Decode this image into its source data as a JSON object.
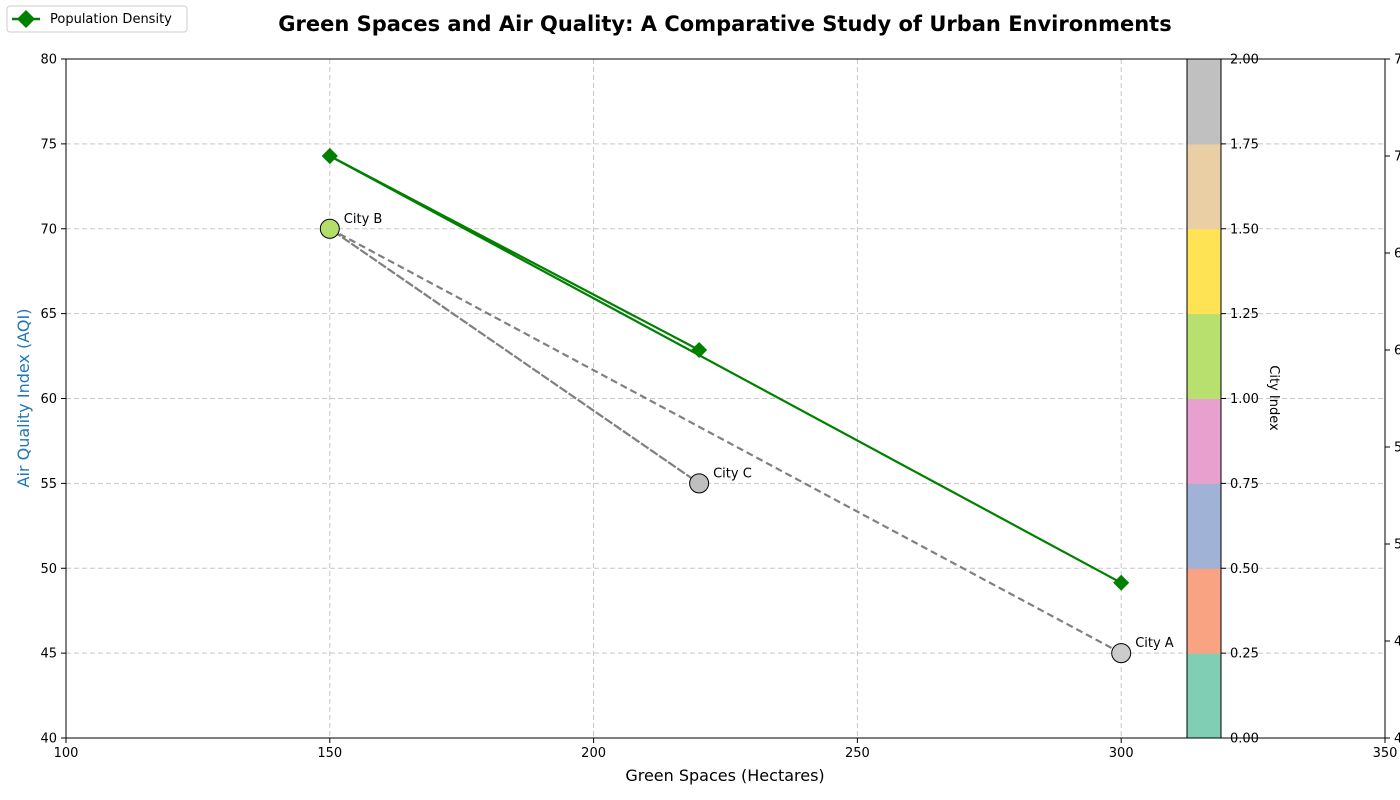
{
  "chart_data": {
    "type": "scatter",
    "title": "Green Spaces and Air Quality: A Comparative Study of Urban Environments",
    "xlabel": "Green Spaces (Hectares)",
    "ylabel": "Air Quality Index (AQI)",
    "xlim": [
      100,
      350
    ],
    "ylim": [
      40,
      80
    ],
    "x_ticks": [
      "100",
      "150",
      "200",
      "250",
      "300",
      "350"
    ],
    "y_ticks": [
      "40",
      "45",
      "50",
      "55",
      "60",
      "65",
      "70",
      "75",
      "80"
    ],
    "grid": true,
    "cities": [
      {
        "label": "City A",
        "green_spaces": 300,
        "aqi": 45,
        "city_index": 0,
        "color": "#cccccc"
      },
      {
        "label": "City B",
        "green_spaces": 150,
        "aqi": 70,
        "city_index": 1,
        "color": "#b3de69"
      },
      {
        "label": "City C",
        "green_spaces": 220,
        "aqi": 55,
        "city_index": 2,
        "color": "#bfbfbf"
      }
    ],
    "aqi_line_order": [
      "City A",
      "City B",
      "City C",
      "City B"
    ],
    "aqi_line_color": "#808080",
    "population_density": {
      "name": "Population Density",
      "color": "#008000",
      "points": [
        {
          "x": 300,
          "y": 4800
        },
        {
          "x": 150,
          "y": 7000
        },
        {
          "x": 220,
          "y": 6000
        },
        {
          "x": 150,
          "y": 7000
        }
      ],
      "ylim": [
        4000,
        7500
      ],
      "tick_values": [
        4000,
        4500,
        5000,
        5500,
        6000,
        6500,
        7000,
        7500
      ],
      "tick_labels": [
        "4",
        "4",
        "5",
        "5",
        "6",
        "6",
        "7",
        "7"
      ]
    },
    "colorbar": {
      "label": "City Index",
      "range": [
        0,
        2
      ],
      "tick_labels": [
        "0.00",
        "0.25",
        "0.50",
        "0.75",
        "1.00",
        "1.25",
        "1.50",
        "1.75",
        "2.00"
      ],
      "colors": [
        "#80cfb5",
        "#f9a383",
        "#a0b2d6",
        "#e8a0cf",
        "#b7e06f",
        "#fee354",
        "#ebcfa4",
        "#c0c0c0"
      ]
    },
    "legend": {
      "entries": [
        "Population Density"
      ],
      "position": "top-left"
    }
  }
}
